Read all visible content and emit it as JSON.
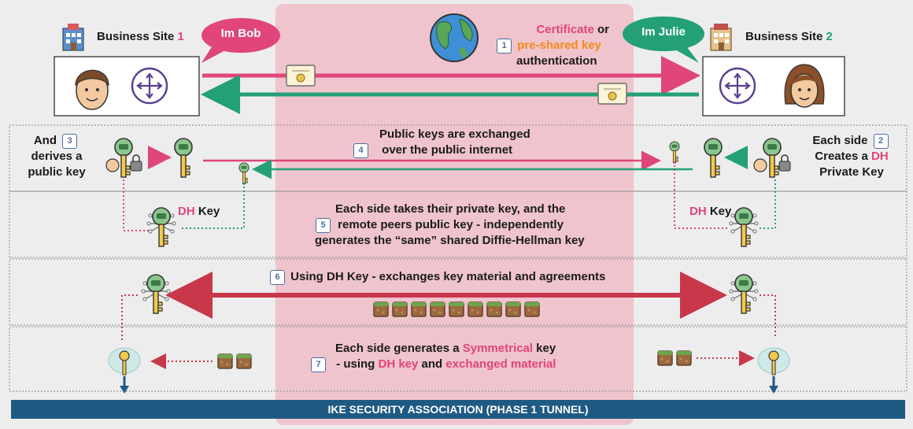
{
  "left_site": {
    "label": "Business Site",
    "number": "1"
  },
  "right_site": {
    "label": "Business Site",
    "number": "2"
  },
  "bob_bubble": "Im Bob",
  "julie_bubble": "Im Julie",
  "step1": {
    "badge": "1",
    "part1": "Certificate",
    "part2": " or",
    "part3": "pre-shared key",
    "part4": "authentication"
  },
  "step2": {
    "line1": "Each side",
    "badge": "2",
    "line2a": "Creates a ",
    "line2b": "DH",
    "line3": "Private Key"
  },
  "step3": {
    "line1": "And",
    "badge": "3",
    "line2": "derives a",
    "line3": "public key"
  },
  "step4": {
    "badge": "4",
    "line1": "Public keys are exchanged",
    "line2": "over the public internet"
  },
  "dh_key_left": {
    "dh": "DH",
    "key": " Key"
  },
  "dh_key_right": {
    "dh": "DH",
    "key": " Key"
  },
  "step5": {
    "badge": "5",
    "line1": "Each side takes their private key, and the",
    "line2": "remote peers public key - independently",
    "line3": "generates the “same” shared Diffie-Hellman key"
  },
  "step6": {
    "badge": "6",
    "text": "Using DH Key - exchanges key material and agreements"
  },
  "step7": {
    "badge": "7",
    "line1a": "Each side generates a ",
    "line1b": "Symmetrical",
    "line1c": " key",
    "line2a": "- using ",
    "line2b": "DH key",
    "line2c": " and ",
    "line2d": "exchanged material"
  },
  "footer": "IKE SECURITY ASSOCIATION (PHASE 1 TUNNEL)",
  "colors": {
    "pink": "#e0457b",
    "green": "#24a077",
    "orange": "#f28a1d",
    "red": "#d9434f",
    "navy": "#1f5a83",
    "router": "#5a3f8e",
    "key_green": "#8bc78d"
  },
  "icons": [
    "building-icon",
    "man-face-icon",
    "woman-face-icon",
    "router-icon",
    "globe-icon",
    "certificate-icon",
    "key-icon",
    "padlock-icon",
    "material-block-icon",
    "symmetric-key-cloud-icon"
  ]
}
